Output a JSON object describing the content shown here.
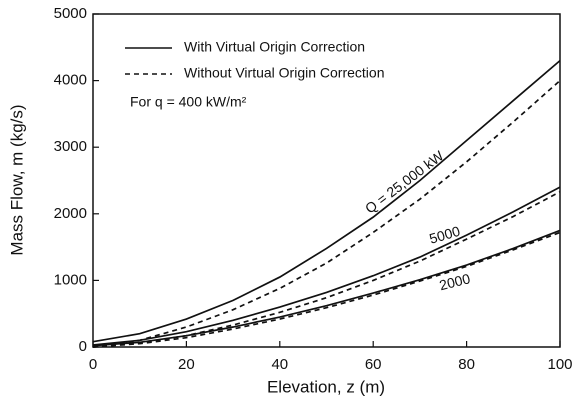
{
  "chart_data": {
    "type": "line",
    "xlabel": "Elevation, z (m)",
    "ylabel": "Mass Flow, m (kg/s)",
    "note": "For q = 400 kW/m²",
    "legend": [
      {
        "label": "With Virtual Origin Correction",
        "style": "solid"
      },
      {
        "label": "Without Virtual Origin Correction",
        "style": "dashed"
      }
    ],
    "x": [
      0,
      10,
      20,
      30,
      40,
      50,
      60,
      70,
      80,
      90,
      100
    ],
    "series": [
      {
        "name": "Q = 25,000 kW",
        "style": "solid",
        "color": "#111111",
        "values": [
          80,
          200,
          420,
          700,
          1050,
          1480,
          1950,
          2500,
          3100,
          3700,
          4300
        ]
      },
      {
        "style": "dashed",
        "color": "#111111",
        "values": [
          0,
          100,
          300,
          560,
          880,
          1260,
          1720,
          2220,
          2780,
          3380,
          4000
        ]
      },
      {
        "name": "5000",
        "style": "solid",
        "color": "#111111",
        "values": [
          30,
          100,
          230,
          400,
          600,
          820,
          1070,
          1350,
          1680,
          2030,
          2400
        ]
      },
      {
        "style": "dashed",
        "color": "#111111",
        "values": [
          0,
          60,
          170,
          330,
          520,
          740,
          1000,
          1290,
          1620,
          1960,
          2330
        ]
      },
      {
        "name": "2000",
        "style": "solid",
        "color": "#111111",
        "values": [
          20,
          70,
          170,
          300,
          450,
          620,
          810,
          1010,
          1230,
          1480,
          1750
        ]
      },
      {
        "style": "dashed",
        "color": "#111111",
        "values": [
          0,
          50,
          140,
          270,
          420,
          590,
          780,
          990,
          1210,
          1460,
          1720
        ]
      }
    ],
    "xlim": [
      0,
      100
    ],
    "xticks": [
      0,
      20,
      40,
      60,
      80,
      100
    ],
    "ylim": [
      0,
      5000
    ],
    "yticks": [
      0,
      1000,
      2000,
      3000,
      4000,
      5000
    ],
    "grid": false
  }
}
